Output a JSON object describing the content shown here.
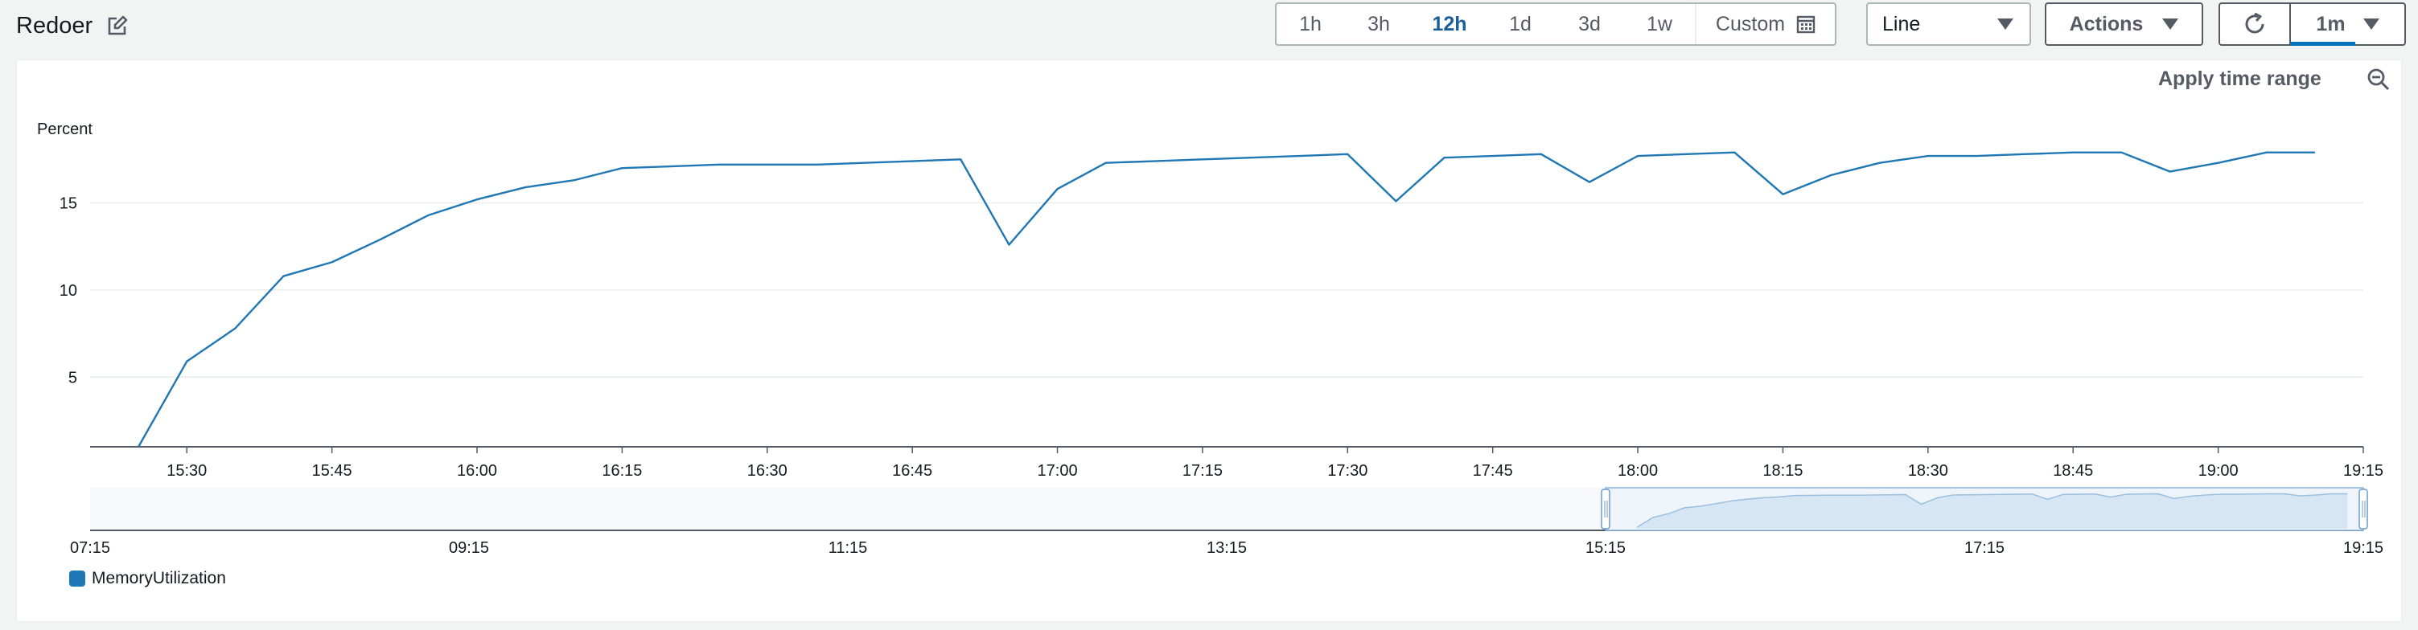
{
  "widget": {
    "title": "Redoer"
  },
  "toolbar": {
    "ranges": [
      "1h",
      "3h",
      "12h",
      "1d",
      "3d",
      "1w"
    ],
    "active_range": "12h",
    "custom_label": "Custom",
    "chart_type": "Line",
    "actions_label": "Actions",
    "refresh_interval": "1m"
  },
  "panel": {
    "apply_time_range": "Apply time range"
  },
  "colors": {
    "series": "#1f77b4",
    "accent": "#1a5e9a",
    "grid": "#eaeded",
    "axis": "#545b64"
  },
  "chart_data": {
    "type": "line",
    "ylabel": "Percent",
    "yticks": [
      5,
      10,
      15
    ],
    "ylim": [
      1,
      19.5
    ],
    "xlim": [
      "15:20",
      "19:15"
    ],
    "xticks": [
      "15:30",
      "15:45",
      "16:00",
      "16:15",
      "16:30",
      "16:45",
      "17:00",
      "17:15",
      "17:30",
      "17:45",
      "18:00",
      "18:15",
      "18:30",
      "18:45",
      "19:00",
      "19:15"
    ],
    "grid": "horizontal",
    "legend_position": "bottom-left",
    "series": [
      {
        "name": "MemoryUtilization",
        "color": "#1f77b4",
        "x": [
          "15:25",
          "15:30",
          "15:35",
          "15:40",
          "15:45",
          "15:50",
          "15:55",
          "16:00",
          "16:05",
          "16:10",
          "16:15",
          "16:20",
          "16:25",
          "16:30",
          "16:35",
          "16:40",
          "16:45",
          "16:50",
          "16:55",
          "17:00",
          "17:05",
          "17:10",
          "17:15",
          "17:20",
          "17:25",
          "17:30",
          "17:35",
          "17:40",
          "17:45",
          "17:50",
          "17:55",
          "18:00",
          "18:05",
          "18:10",
          "18:15",
          "18:20",
          "18:25",
          "18:30",
          "18:35",
          "18:40",
          "18:45",
          "18:50",
          "18:55",
          "19:00",
          "19:05",
          "19:10"
        ],
        "values": [
          1.0,
          5.9,
          7.8,
          10.8,
          11.6,
          12.9,
          14.3,
          15.2,
          15.9,
          16.3,
          17.0,
          17.1,
          17.2,
          17.2,
          17.2,
          17.3,
          17.4,
          17.5,
          12.6,
          15.8,
          17.3,
          17.4,
          17.5,
          17.6,
          17.7,
          17.8,
          15.1,
          17.6,
          17.7,
          17.8,
          16.2,
          17.7,
          17.8,
          17.9,
          15.5,
          16.6,
          17.3,
          17.7,
          17.7,
          17.8,
          17.9,
          17.9,
          16.8,
          17.3,
          17.9,
          17.9
        ]
      }
    ],
    "navigator": {
      "xticks": [
        "07:15",
        "09:15",
        "11:15",
        "13:15",
        "15:15",
        "17:15",
        "19:15"
      ],
      "selection": [
        "15:15",
        "19:15"
      ]
    }
  }
}
